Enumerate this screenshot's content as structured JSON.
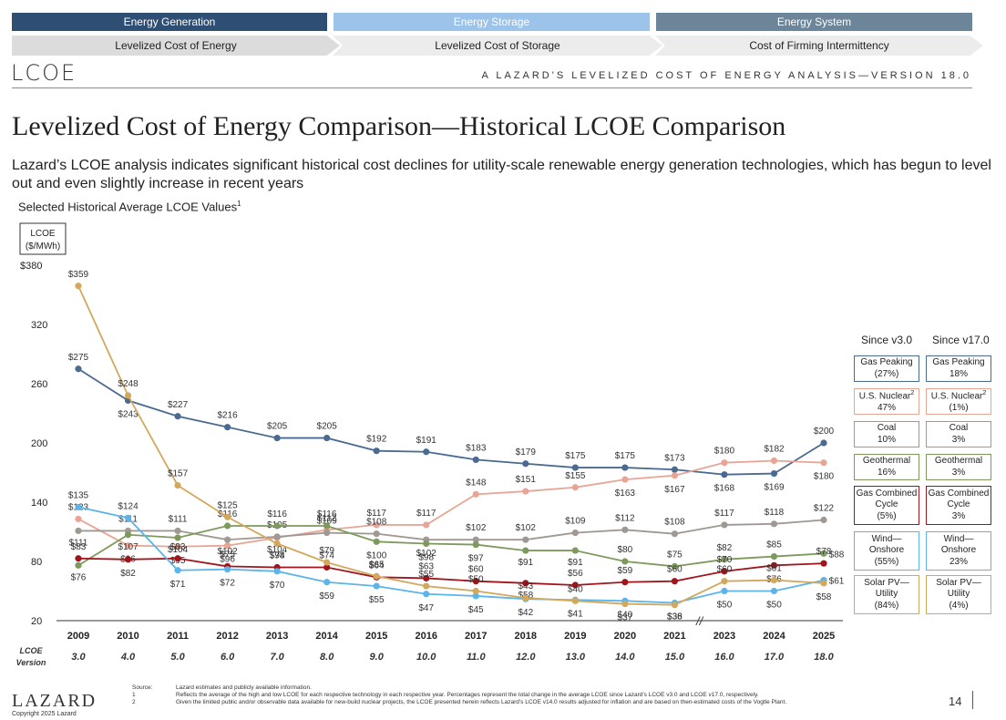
{
  "nav": {
    "top": [
      "Energy Generation",
      "Energy Storage",
      "Energy System"
    ],
    "sub": [
      "Levelized Cost of Energy",
      "Levelized Cost of Storage",
      "Cost of Firming Intermittency"
    ],
    "colors": [
      "#2e4f73",
      "#9cc3ea",
      "#6c8599"
    ]
  },
  "header": {
    "logo": "LCOE",
    "report_title": "A  LAZARD'S LEVELIZED COST OF ENERGY ANALYSIS—VERSION 18.0"
  },
  "page_title": "Levelized Cost of Energy Comparison—Historical LCOE Comparison",
  "subtitle": "Lazard’s LCOE analysis indicates significant historical cost declines for utility-scale renewable energy generation technologies, which has begun to level out and even slightly increase in recent years",
  "chart_label": "Selected Historical Average LCOE Values",
  "chart_label_sup": "1",
  "chart_data": {
    "type": "line",
    "ylabel": "LCOE ($/MWh)",
    "ylabel_top": "LCOE",
    "ylabel_bottom": "($/MWh)",
    "ylim": [
      20,
      380
    ],
    "yticks": [
      "$380",
      "320",
      "260",
      "200",
      "140",
      "80",
      "20"
    ],
    "ytick_values": [
      380,
      320,
      260,
      200,
      140,
      80,
      20
    ],
    "x": [
      "2009",
      "2010",
      "2011",
      "2012",
      "2013",
      "2014",
      "2015",
      "2016",
      "2017",
      "2018",
      "2019",
      "2020",
      "2021",
      "2023",
      "2024",
      "2025"
    ],
    "versions": [
      "3.0",
      "4.0",
      "5.0",
      "6.0",
      "7.0",
      "8.0",
      "9.0",
      "10.0",
      "11.0",
      "12.0",
      "13.0",
      "14.0",
      "15.0",
      "16.0",
      "17.0",
      "18.0"
    ],
    "xlabel_version": [
      "LCOE",
      "Version"
    ],
    "axis_break": "//",
    "series": [
      {
        "name": "Gas Peaking",
        "color": "#4a6a91",
        "values": [
          275,
          243,
          227,
          216,
          205,
          205,
          192,
          191,
          183,
          179,
          175,
          175,
          173,
          168,
          169,
          200
        ],
        "labels": [
          "$275",
          "$243",
          "$227",
          "$216",
          "$205",
          "$205",
          "$192",
          "$191",
          "$183",
          "$179",
          "$175",
          "$175",
          "$173",
          "$168",
          "$169",
          "$200"
        ]
      },
      {
        "name": "U.S. Nuclear",
        "color": "#e8a596",
        "values": [
          123,
          96,
          95,
          96,
          104,
          112,
          117,
          117,
          148,
          151,
          155,
          163,
          167,
          180,
          182,
          180
        ],
        "labels": [
          "$123",
          "$96",
          "$95",
          "$96",
          "$104",
          "$112",
          "$117",
          "$117",
          "$148",
          "$151",
          "$155",
          "$163",
          "$167",
          "$180",
          "$182",
          "$180"
        ]
      },
      {
        "name": "Coal",
        "color": "#a09893",
        "values": [
          111,
          111,
          111,
          102,
          105,
          109,
          108,
          102,
          102,
          102,
          109,
          112,
          108,
          117,
          118,
          122
        ],
        "labels": [
          "$111",
          "$111",
          "$111",
          "$102",
          "$105",
          "$109",
          "$108",
          "$102",
          "$102",
          "$102",
          "$109",
          "$112",
          "$108",
          "$117",
          "$118",
          "$122"
        ]
      },
      {
        "name": "Geothermal",
        "color": "#7d9a5c",
        "values": [
          76,
          107,
          104,
          116,
          116,
          116,
          100,
          98,
          97,
          91,
          91,
          80,
          75,
          82,
          85,
          88
        ],
        "labels": [
          "$76",
          "$107",
          "$104",
          "$116",
          "$116",
          "$116",
          "$100",
          "$98",
          "$97",
          "$91",
          "$91",
          "$80",
          "$75",
          "$82",
          "$85",
          "$88"
        ]
      },
      {
        "name": "Gas Combined Cycle",
        "color": "#a0151b",
        "values": [
          83,
          82,
          83,
          75,
          74,
          74,
          64,
          63,
          60,
          58,
          56,
          59,
          60,
          70,
          76,
          78
        ],
        "labels": [
          "$83",
          "$82",
          "$83",
          "$75",
          "$74",
          "$74",
          "$64",
          "$63",
          "$60",
          "$58",
          "$56",
          "$59",
          "$60",
          "$70",
          "$76",
          "$78"
        ]
      },
      {
        "name": "Wind—Onshore",
        "color": "#5bb4ea",
        "values": [
          135,
          124,
          71,
          72,
          70,
          59,
          55,
          47,
          45,
          42,
          41,
          40,
          38,
          50,
          50,
          61
        ],
        "labels": [
          "$135",
          "$124",
          "$71",
          "$72",
          "$70",
          "$59",
          "$55",
          "$47",
          "$45",
          "$42",
          "$41",
          "$40",
          "$38",
          "$50",
          "$50",
          "$61"
        ]
      },
      {
        "name": "Solar PV—Utility",
        "color": "#d2a85c",
        "values": [
          359,
          248,
          157,
          125,
          98,
          79,
          65,
          55,
          50,
          43,
          40,
          37,
          36,
          60,
          61,
          58
        ],
        "labels": [
          "$359",
          "$248",
          "$157",
          "$125",
          "$98",
          "$79",
          "$65",
          "$55",
          "$50",
          "$43",
          "$40",
          "$37",
          "$36",
          "$60",
          "$61",
          "$58"
        ]
      }
    ]
  },
  "legend": {
    "head_v3": "Since v3.0",
    "head_v17": "Since v17.0",
    "items": [
      {
        "l1": "Gas Peaking",
        "sup": "",
        "l2": "",
        "v3": "(27%)",
        "v17": "18%",
        "color": "#4a6a91"
      },
      {
        "l1": "U.S. Nuclear",
        "sup": "2",
        "l2": "",
        "v3": "47%",
        "v17": "(1%)",
        "color": "#e8a596"
      },
      {
        "l1": "Coal",
        "sup": "",
        "l2": "",
        "v3": "10%",
        "v17": "3%",
        "color": "#a09893"
      },
      {
        "l1": "Geothermal",
        "sup": "",
        "l2": "",
        "v3": "16%",
        "v17": "3%",
        "color": "#7d9a5c"
      },
      {
        "l1": "Gas Combined",
        "sup": "",
        "l2": "Cycle",
        "v3": "(5%)",
        "v17": "3%",
        "color": "#a0151b"
      },
      {
        "l1": "Wind—",
        "sup": "",
        "l2": "Onshore",
        "v3": "(55%)",
        "v17": "23%",
        "color": "#5bb4ea"
      },
      {
        "l1": "Solar PV—",
        "sup": "",
        "l2": "Utility",
        "v3": "(84%)",
        "v17": "(4%)",
        "color": "#d2a85c"
      }
    ]
  },
  "footer": {
    "logo": "LAZARD",
    "copyright": "Copyright 2025 Lazard",
    "notes": [
      {
        "k": "Source:",
        "t": "Lazard estimates and publicly available information."
      },
      {
        "k": "1",
        "t": "Reflects the average of the high and low LCOE for each respective technology in each respective year. Percentages represent the total change in the average LCOE since Lazard’s LCOE v3.0 and LCOE v17.0, respectively."
      },
      {
        "k": "2",
        "t": "Given the limited public and/or observable data available for new-build nuclear projects, the LCOE presented herein reflects Lazard’s LCOE v14.0 results adjusted for inflation and are based on then-estimated costs of the Vogtle Plant."
      }
    ],
    "page": "14"
  }
}
